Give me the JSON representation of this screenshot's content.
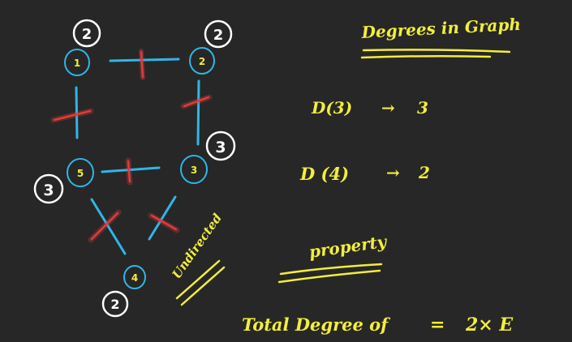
{
  "colors": {
    "background": "#272727",
    "edge": "#2fb6e6",
    "node_ring": "#2fb6e6",
    "node_label": "#f2ee3a",
    "degree_ring": "#ffffff",
    "strike": "#e23b3b",
    "annotation": "#f2ee3a"
  },
  "graph": {
    "nodes": [
      {
        "id": "1",
        "label": "1",
        "degree": "2"
      },
      {
        "id": "2",
        "label": "2",
        "degree": "2"
      },
      {
        "id": "5",
        "label": "5",
        "degree": "3"
      },
      {
        "id": "3",
        "label": "3",
        "degree": "3"
      },
      {
        "id": "4",
        "label": "4",
        "degree": "2"
      }
    ],
    "edges": [
      {
        "from": "1",
        "to": "2"
      },
      {
        "from": "1",
        "to": "5"
      },
      {
        "from": "2",
        "to": "3"
      },
      {
        "from": "5",
        "to": "3"
      },
      {
        "from": "5",
        "to": "4"
      },
      {
        "from": "3",
        "to": "4"
      }
    ],
    "type_label": "Undirected"
  },
  "notes": {
    "title": "Degrees in Graph",
    "line1_left": "D(3)",
    "line1_arrow": "→",
    "line1_value": "3",
    "line2_left": "D (4)",
    "line2_arrow": "→",
    "line2_value": "2",
    "property_heading": "property",
    "formula_left": "Total Degree of",
    "formula_eq": "=",
    "formula_right": "2× E"
  }
}
